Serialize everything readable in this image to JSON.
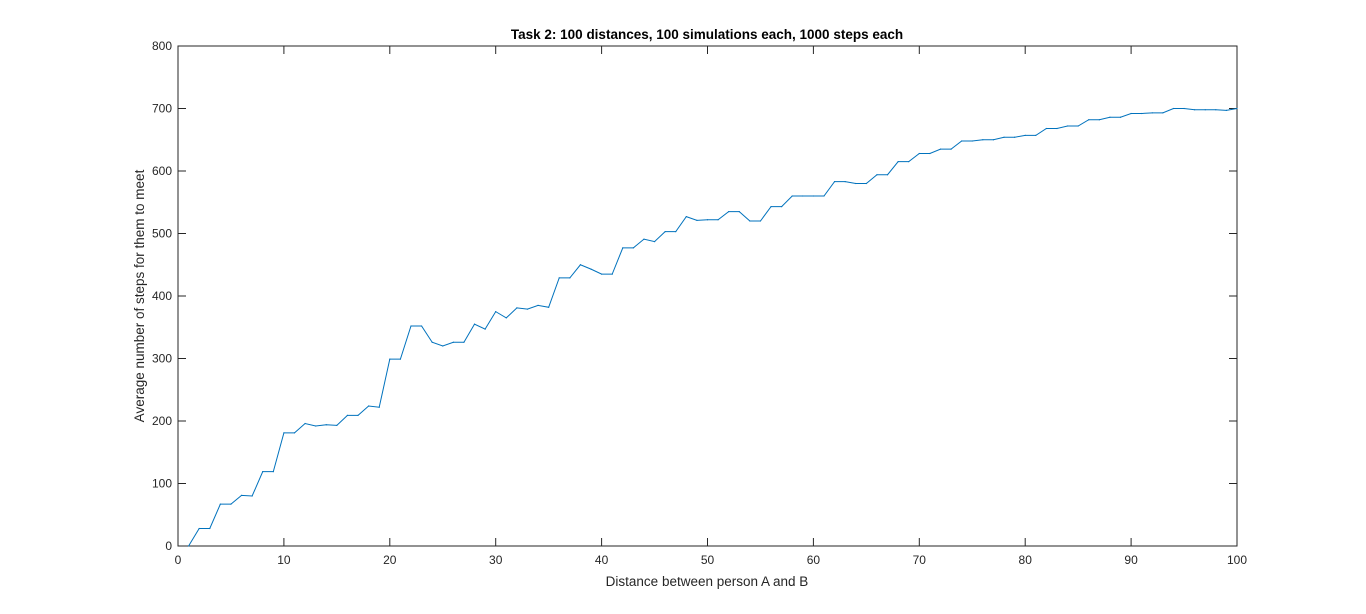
{
  "chart_data": {
    "type": "line",
    "title": "Task 2: 100 distances, 100 simulations each, 1000 steps each",
    "xlabel": "Distance between person A and B",
    "ylabel": "Average number of steps for them to meet",
    "xlim": [
      0,
      100
    ],
    "ylim": [
      0,
      800
    ],
    "xticks": [
      0,
      10,
      20,
      30,
      40,
      50,
      60,
      70,
      80,
      90,
      100
    ],
    "yticks": [
      0,
      100,
      200,
      300,
      400,
      500,
      600,
      700,
      800
    ],
    "grid": false,
    "legend": null,
    "line_color": "#0072BD",
    "x": [
      1,
      2,
      3,
      4,
      5,
      6,
      7,
      8,
      9,
      10,
      11,
      12,
      13,
      14,
      15,
      16,
      17,
      18,
      19,
      20,
      21,
      22,
      23,
      24,
      25,
      26,
      27,
      28,
      29,
      30,
      31,
      32,
      33,
      34,
      35,
      36,
      37,
      38,
      39,
      40,
      41,
      42,
      43,
      44,
      45,
      46,
      47,
      48,
      49,
      50,
      51,
      52,
      53,
      54,
      55,
      56,
      57,
      58,
      59,
      60,
      61,
      62,
      63,
      64,
      65,
      66,
      67,
      68,
      69,
      70,
      71,
      72,
      73,
      74,
      75,
      76,
      77,
      78,
      79,
      80,
      81,
      82,
      83,
      84,
      85,
      86,
      87,
      88,
      89,
      90,
      91,
      92,
      93,
      94,
      95,
      96,
      97,
      98,
      99,
      100
    ],
    "y": [
      0,
      28,
      28,
      67,
      67,
      81,
      80,
      119,
      119,
      181,
      181,
      196,
      192,
      194,
      193,
      209,
      209,
      224,
      222,
      299,
      299,
      352,
      352,
      326,
      320,
      326,
      326,
      355,
      347,
      375,
      365,
      381,
      379,
      385,
      382,
      429,
      429,
      450,
      443,
      435,
      435,
      477,
      477,
      491,
      487,
      503,
      503,
      527,
      521,
      522,
      522,
      535,
      535,
      520,
      520,
      543,
      543,
      560,
      560,
      560,
      560,
      583,
      583,
      580,
      580,
      594,
      594,
      615,
      615,
      628,
      628,
      635,
      635,
      648,
      648,
      650,
      650,
      654,
      654,
      657,
      657,
      668,
      668,
      672,
      672,
      682,
      682,
      686,
      686,
      692,
      692,
      693,
      693,
      700,
      700,
      698,
      698,
      698,
      697,
      700
    ]
  }
}
